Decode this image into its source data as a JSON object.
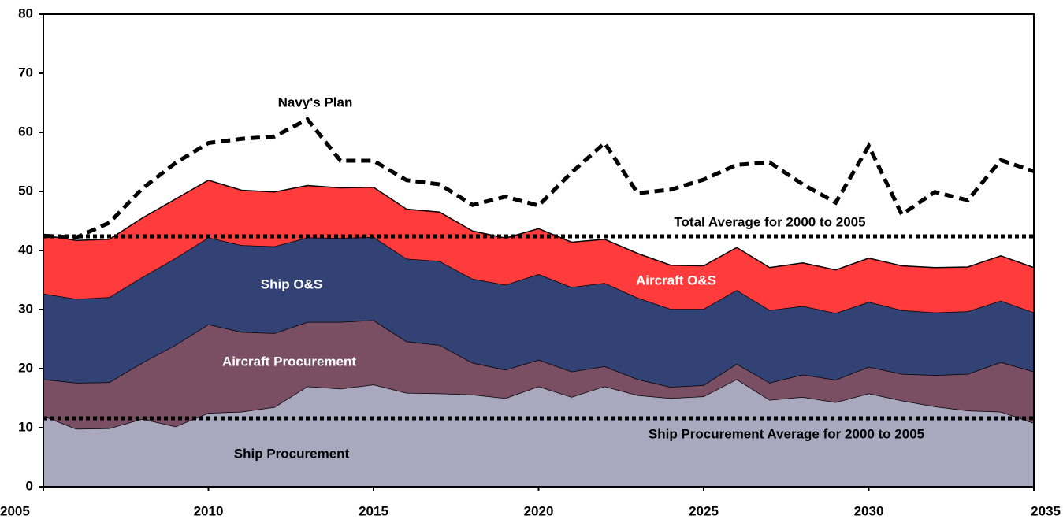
{
  "chart_data": {
    "type": "stacked_area",
    "x": [
      2005,
      2006,
      2007,
      2008,
      2009,
      2010,
      2011,
      2012,
      2013,
      2014,
      2015,
      2016,
      2017,
      2018,
      2019,
      2020,
      2021,
      2022,
      2023,
      2024,
      2025,
      2026,
      2027,
      2028,
      2029,
      2030,
      2031,
      2032,
      2033,
      2034,
      2035
    ],
    "series": [
      {
        "name": "Ship Procurement",
        "color": "#aaa8be",
        "label_color": "#000",
        "values": [
          12,
          9.8,
          9.9,
          11.5,
          10.2,
          12.5,
          12.7,
          13.5,
          17,
          16.6,
          17.3,
          15.9,
          15.8,
          15.6,
          15,
          17,
          15.2,
          17,
          15.5,
          15,
          15.3,
          18.2,
          14.7,
          15.2,
          14.3,
          15.8,
          14.6,
          13.6,
          12.9,
          12.7,
          10.8
        ]
      },
      {
        "name": "Aircraft Procurement",
        "color": "#7a4f63",
        "label_color": "#fff",
        "values": [
          6.2,
          7.8,
          7.8,
          9.5,
          13.8,
          15,
          13.5,
          12.5,
          10.9,
          11.3,
          10.9,
          8.7,
          8.2,
          5.4,
          4.8,
          4.5,
          4.3,
          3.4,
          2.7,
          1.9,
          1.9,
          2.6,
          2.9,
          3.8,
          3.8,
          4.5,
          4.5,
          5.3,
          6.2,
          8.4,
          8.7
        ]
      },
      {
        "name": "Ship O&S",
        "color": "#324275",
        "label_color": "#fff",
        "values": [
          14.5,
          14.2,
          14.4,
          14.5,
          14.7,
          14.7,
          14.7,
          14.7,
          14.3,
          14.2,
          14.1,
          14,
          14.2,
          14.2,
          14.4,
          14.5,
          14.3,
          14.1,
          13.8,
          13.2,
          12.9,
          12.5,
          12.3,
          11.6,
          11.3,
          11,
          10.8,
          10.6,
          10.6,
          10.4,
          10
        ]
      },
      {
        "name": "Aircraft O&S",
        "color": "#ff3b3b",
        "label_color": "#fff",
        "values": [
          9.9,
          9.9,
          9.8,
          10,
          10,
          9.7,
          9.3,
          9.2,
          8.8,
          8.5,
          8.4,
          8.4,
          8.3,
          8.1,
          7.9,
          7.7,
          7.6,
          7.4,
          7.5,
          7.4,
          7.3,
          7.2,
          7.2,
          7.3,
          7.3,
          7.4,
          7.5,
          7.6,
          7.5,
          7.6,
          7.6
        ]
      }
    ],
    "plan": {
      "name": "Navy's Plan",
      "color": "#000",
      "values": [
        42.5,
        42.2,
        44.7,
        50.5,
        54.8,
        58.2,
        58.9,
        59.3,
        62.2,
        55.2,
        55.2,
        51.9,
        51.2,
        47.7,
        49.1,
        47.6,
        53.2,
        58.2,
        49.7,
        50.3,
        52,
        54.5,
        54.9,
        51.2,
        48.1,
        57.7,
        46.1,
        49.9,
        48.5,
        55.3,
        53.4
      ]
    },
    "reference_lines": [
      {
        "label": "Total Average for 2000 to 2005",
        "value": 42.4
      },
      {
        "label": "Ship Procurement Average for 2000 to 2005",
        "value": 11.6
      }
    ],
    "xlim": [
      2005,
      2035
    ],
    "xticks": [
      2005,
      2010,
      2015,
      2020,
      2025,
      2030,
      2035
    ],
    "ylim": [
      0,
      80
    ],
    "yticks": [
      0,
      10,
      20,
      30,
      40,
      50,
      60,
      70,
      80
    ]
  }
}
